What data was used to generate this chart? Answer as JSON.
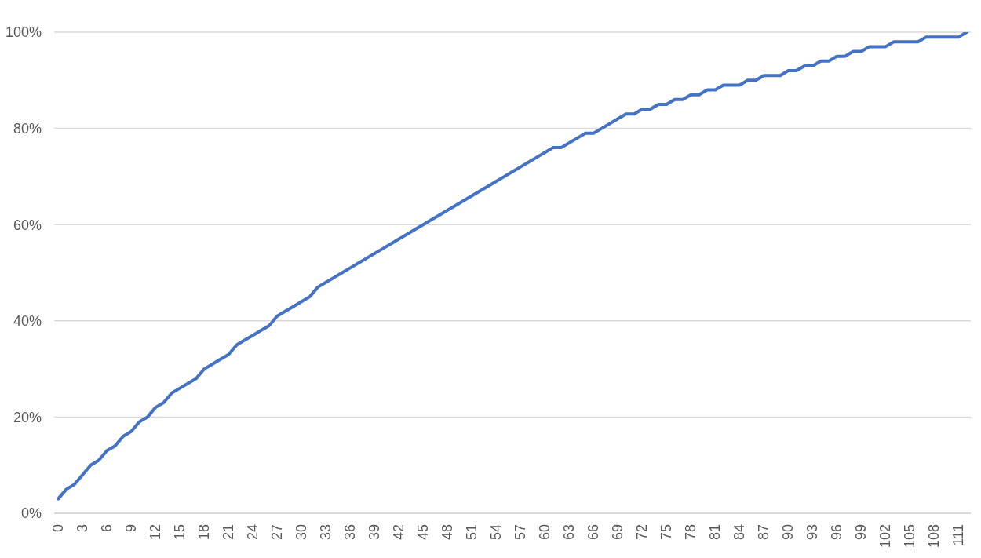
{
  "chart_data": {
    "type": "line",
    "categories": [
      "0",
      null,
      null,
      "3",
      null,
      null,
      "6",
      null,
      null,
      "9",
      null,
      null,
      "12",
      null,
      null,
      "15",
      null,
      null,
      "18",
      null,
      null,
      "21",
      null,
      null,
      "24",
      null,
      null,
      "27",
      null,
      null,
      "30",
      null,
      null,
      "33",
      null,
      null,
      "36",
      null,
      null,
      "39",
      null,
      null,
      "42",
      null,
      null,
      "45",
      null,
      null,
      "48",
      null,
      null,
      "51",
      null,
      null,
      "54",
      null,
      null,
      "57",
      null,
      null,
      "60",
      null,
      null,
      "63",
      null,
      null,
      "66",
      null,
      null,
      "69",
      null,
      null,
      "72",
      null,
      null,
      "75",
      null,
      null,
      "78",
      null,
      null,
      "81",
      null,
      null,
      "84",
      null,
      null,
      "87",
      null,
      null,
      "90",
      null,
      null,
      "93",
      null,
      null,
      "96",
      null,
      null,
      "99",
      null,
      null,
      "102",
      null,
      null,
      "105",
      null,
      null,
      "108",
      null,
      null,
      "111",
      null
    ],
    "values": [
      3,
      5,
      6,
      8,
      10,
      11,
      13,
      14,
      16,
      17,
      19,
      20,
      22,
      23,
      25,
      26,
      27,
      28,
      30,
      31,
      32,
      33,
      35,
      36,
      37,
      38,
      39,
      41,
      42,
      43,
      44,
      45,
      47,
      48,
      49,
      50,
      51,
      52,
      53,
      54,
      55,
      56,
      57,
      58,
      59,
      60,
      61,
      62,
      63,
      64,
      65,
      66,
      67,
      68,
      69,
      70,
      71,
      72,
      73,
      74,
      75,
      76,
      76,
      77,
      78,
      79,
      79,
      80,
      81,
      82,
      83,
      83,
      84,
      84,
      85,
      85,
      86,
      86,
      87,
      87,
      88,
      88,
      89,
      89,
      89,
      90,
      90,
      91,
      91,
      91,
      92,
      92,
      93,
      93,
      94,
      94,
      95,
      95,
      96,
      96,
      97,
      97,
      97,
      98,
      98,
      98,
      98,
      99,
      99,
      99,
      99,
      99,
      100
    ],
    "color": "#4472c4",
    "ylim": [
      0,
      100
    ],
    "yticks": [
      {
        "value": 0,
        "label": "0%"
      },
      {
        "value": 20,
        "label": "20%"
      },
      {
        "value": 40,
        "label": "40%"
      },
      {
        "value": 60,
        "label": "60%"
      },
      {
        "value": 80,
        "label": "80%"
      },
      {
        "value": 100,
        "label": "100%"
      }
    ],
    "grid": "y",
    "marker": "none",
    "line_style": "solid"
  }
}
